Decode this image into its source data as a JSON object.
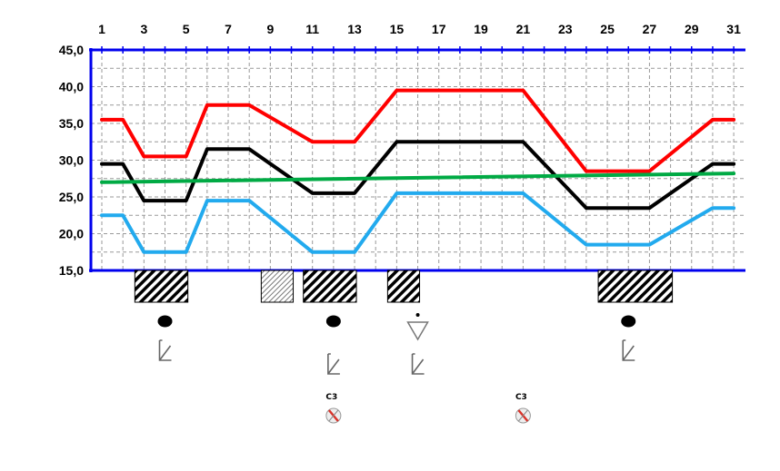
{
  "chart_data": {
    "type": "line",
    "x_ticks": [
      "1",
      "3",
      "5",
      "7",
      "9",
      "11",
      "13",
      "15",
      "17",
      "19",
      "21",
      "23",
      "25",
      "27",
      "29",
      "31"
    ],
    "y_ticks": [
      "15,0",
      "20,0",
      "25,0",
      "30,0",
      "35,0",
      "40,0",
      "45,0"
    ],
    "x_range": [
      1,
      31
    ],
    "ylim": [
      15,
      45
    ],
    "grid": true,
    "colors": {
      "axis": "#0000ee",
      "grid": "#999999"
    },
    "series": [
      {
        "color": "#ff0000",
        "points": [
          [
            1,
            35.5
          ],
          [
            2,
            35.5
          ],
          [
            3,
            30.5
          ],
          [
            5,
            30.5
          ],
          [
            6,
            37.5
          ],
          [
            8,
            37.5
          ],
          [
            11,
            32.5
          ],
          [
            13,
            32.5
          ],
          [
            15,
            39.5
          ],
          [
            21,
            39.5
          ],
          [
            24,
            28.5
          ],
          [
            27,
            28.5
          ],
          [
            30,
            35.5
          ],
          [
            31,
            35.5
          ]
        ]
      },
      {
        "color": "#000000",
        "points": [
          [
            1,
            29.5
          ],
          [
            2,
            29.5
          ],
          [
            3,
            24.5
          ],
          [
            5,
            24.5
          ],
          [
            6,
            31.5
          ],
          [
            8,
            31.5
          ],
          [
            11,
            25.5
          ],
          [
            13,
            25.5
          ],
          [
            15,
            32.5
          ],
          [
            21,
            32.5
          ],
          [
            24,
            23.5
          ],
          [
            27,
            23.5
          ],
          [
            30,
            29.5
          ],
          [
            31,
            29.5
          ]
        ]
      },
      {
        "color": "#00aa44",
        "points": [
          [
            1,
            27.0
          ],
          [
            31,
            28.2
          ]
        ]
      },
      {
        "color": "#22aaee",
        "points": [
          [
            1,
            22.5
          ],
          [
            2,
            22.5
          ],
          [
            3,
            17.5
          ],
          [
            5,
            17.5
          ],
          [
            6,
            24.5
          ],
          [
            8,
            24.5
          ],
          [
            11,
            17.5
          ],
          [
            13,
            17.5
          ],
          [
            15,
            25.5
          ],
          [
            21,
            25.5
          ],
          [
            24,
            18.5
          ],
          [
            27,
            18.5
          ],
          [
            30,
            23.5
          ],
          [
            31,
            23.5
          ]
        ]
      }
    ],
    "hatched_bars": [
      {
        "from": 3,
        "to": 5,
        "style": "dense"
      },
      {
        "from": 9,
        "to": 10,
        "style": "light"
      },
      {
        "from": 11,
        "to": 13,
        "style": "dense"
      },
      {
        "from": 15,
        "to": 16,
        "style": "dense"
      },
      {
        "from": 25,
        "to": 28,
        "style": "dense"
      }
    ],
    "symbols": [
      {
        "icon": "dot-icon",
        "day": 4
      },
      {
        "icon": "dot-icon",
        "day": 12
      },
      {
        "icon": "dot-icon",
        "day": 26
      },
      {
        "icon": "triangle-dot-icon",
        "day": 16
      },
      {
        "icon": "arrow-icon",
        "day": 4
      },
      {
        "icon": "arrow-icon",
        "day": 12
      },
      {
        "icon": "arrow-icon",
        "day": 16
      },
      {
        "icon": "arrow-icon",
        "day": 26
      },
      {
        "icon": "compass-icon",
        "day": 12,
        "label": "C3"
      },
      {
        "icon": "compass-icon",
        "day": 21,
        "label": "C3"
      }
    ]
  }
}
